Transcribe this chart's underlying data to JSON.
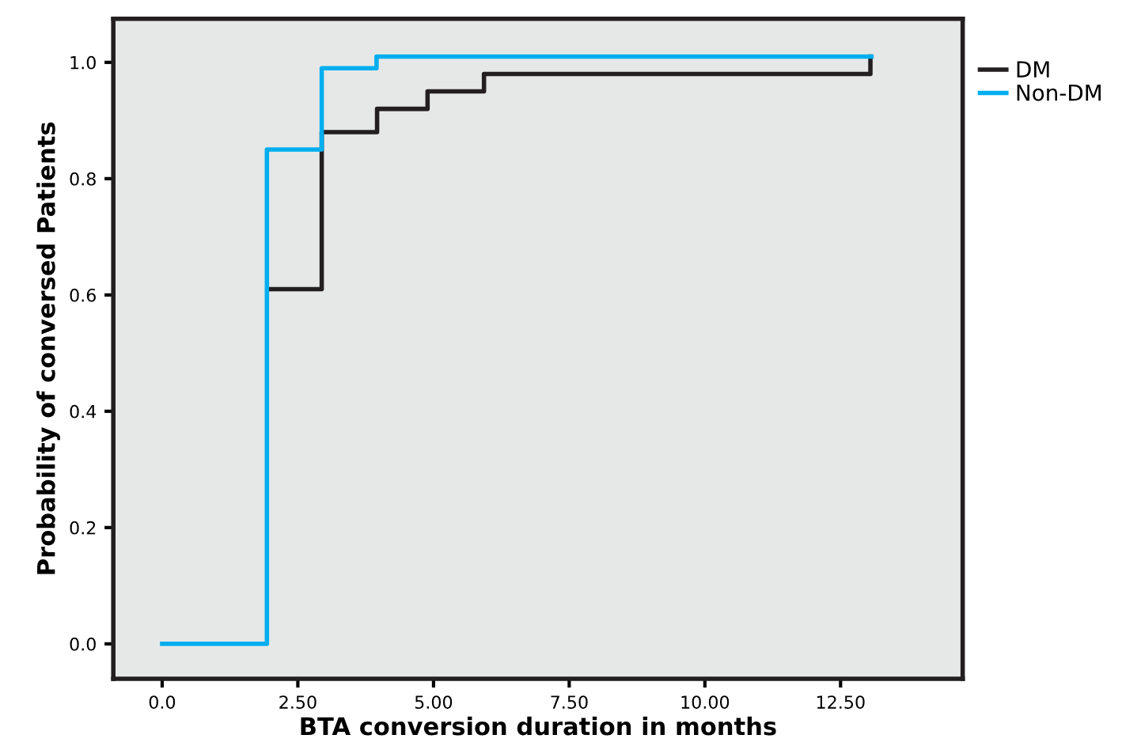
{
  "chart_data": {
    "type": "step",
    "xlabel": "BTA conversion duration in months",
    "ylabel": "Probability of conversed Patients",
    "series": [
      {
        "name": "DM",
        "color": "#231f20",
        "x": [
          1.95,
          2.94,
          3.96,
          4.89,
          5.93,
          13.05
        ],
        "values": [
          0.61,
          0.88,
          0.92,
          0.95,
          0.98,
          1.01
        ]
      },
      {
        "name": "Non-DM",
        "color": "#00aeef",
        "x": [
          0,
          1.93,
          2.94,
          3.95,
          13.07
        ],
        "values": [
          0,
          0.85,
          0.99,
          1.01,
          1.01
        ]
      }
    ],
    "xlim": [
      -0.9,
      14.75
    ],
    "ylim": [
      -0.06,
      1.075
    ],
    "xticks": [
      {
        "value": 0,
        "label": "0.0"
      },
      {
        "value": 2.5,
        "label": "2.50"
      },
      {
        "value": 5,
        "label": "5.00"
      },
      {
        "value": 7.5,
        "label": "7.50"
      },
      {
        "value": 10,
        "label": "10.00"
      },
      {
        "value": 12.5,
        "label": "12.50"
      }
    ],
    "yticks": [
      {
        "value": 0,
        "label": "0.0"
      },
      0.2,
      0.4,
      0.6,
      0.8,
      {
        "value": 1,
        "label": "1.0"
      }
    ],
    "grid": false,
    "legend": "top right"
  }
}
